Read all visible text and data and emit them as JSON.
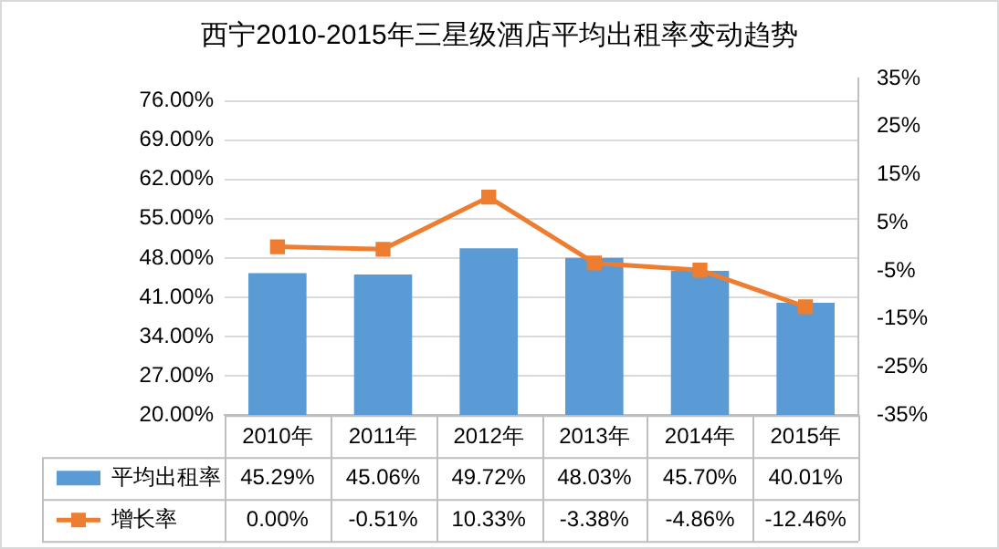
{
  "chart_data": {
    "type": "bar",
    "title": "西宁2010-2015年三星级酒店平均出租率变动趋势",
    "categories": [
      "2010年",
      "2011年",
      "2012年",
      "2013年",
      "2014年",
      "2015年"
    ],
    "series": [
      {
        "name": "平均出租率",
        "color": "#5b9bd5",
        "values": [
          45.29,
          45.06,
          49.72,
          48.03,
          45.7,
          40.01
        ],
        "value_labels": [
          "45.29%",
          "45.06%",
          "49.72%",
          "48.03%",
          "45.70%",
          "40.01%"
        ]
      },
      {
        "name": "增长率",
        "type": "line",
        "axis": "y2",
        "color": "#ed7d31",
        "marker": "square",
        "values": [
          0.0,
          -0.51,
          10.33,
          -3.38,
          -4.86,
          -12.46
        ],
        "value_labels": [
          "0.00%",
          "-0.51%",
          "10.33%",
          "-3.38%",
          "-4.86%",
          "-12.46%"
        ]
      }
    ],
    "ylim": [
      20,
      80
    ],
    "yticks": [
      {
        "value": 20,
        "label": "20.00%"
      },
      {
        "value": 27,
        "label": "27.00%"
      },
      {
        "value": 34,
        "label": "34.00%"
      },
      {
        "value": 41,
        "label": "41.00%"
      },
      {
        "value": 48,
        "label": "48.00%"
      },
      {
        "value": 55,
        "label": "55.00%"
      },
      {
        "value": 62,
        "label": "62.00%"
      },
      {
        "value": 69,
        "label": "69.00%"
      },
      {
        "value": 76,
        "label": "76.00%"
      }
    ],
    "y2lim": [
      -35,
      35
    ],
    "y2ticks": [
      {
        "value": -35,
        "label": "-35%"
      },
      {
        "value": -25,
        "label": "-25%"
      },
      {
        "value": -15,
        "label": "-15%"
      },
      {
        "value": -5,
        "label": "-5%"
      },
      {
        "value": 5,
        "label": "5%"
      },
      {
        "value": 15,
        "label": "15%"
      },
      {
        "value": 25,
        "label": "25%"
      },
      {
        "value": 35,
        "label": "35%"
      }
    ],
    "grid": "y",
    "legend": "bottom",
    "data_labels": true
  }
}
